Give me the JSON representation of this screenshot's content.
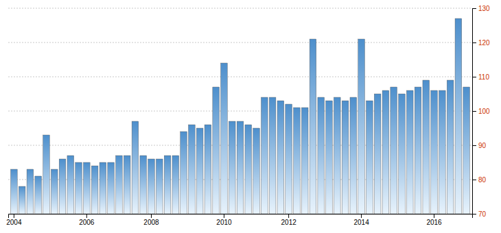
{
  "chart_data": {
    "type": "bar",
    "categories": [
      "2004",
      null,
      null,
      null,
      null,
      null,
      null,
      null,
      null,
      "2006",
      null,
      null,
      null,
      null,
      null,
      null,
      null,
      "2008",
      null,
      null,
      null,
      null,
      null,
      null,
      null,
      null,
      "2010",
      null,
      null,
      null,
      null,
      null,
      null,
      null,
      "2012",
      null,
      null,
      null,
      null,
      null,
      null,
      null,
      null,
      "2014",
      null,
      null,
      null,
      null,
      null,
      null,
      null,
      null,
      "2016",
      null,
      null,
      null,
      null
    ],
    "values": [
      83,
      78,
      83,
      81,
      93,
      83,
      86,
      87,
      85,
      85,
      84,
      85,
      85,
      87,
      87,
      97,
      87,
      86,
      86,
      87,
      87,
      94,
      96,
      95,
      96,
      107,
      114,
      97,
      97,
      96,
      95,
      104,
      104,
      103,
      102,
      101,
      101,
      121,
      104,
      103,
      104,
      103,
      104,
      121,
      103,
      105,
      106,
      107,
      105,
      106,
      107,
      109,
      106,
      106,
      109,
      127,
      107
    ],
    "color": "#4d8fcc",
    "ylim": [
      70,
      130
    ],
    "yticks": [
      70,
      80,
      90,
      100,
      110,
      120,
      130
    ],
    "grid": true
  }
}
